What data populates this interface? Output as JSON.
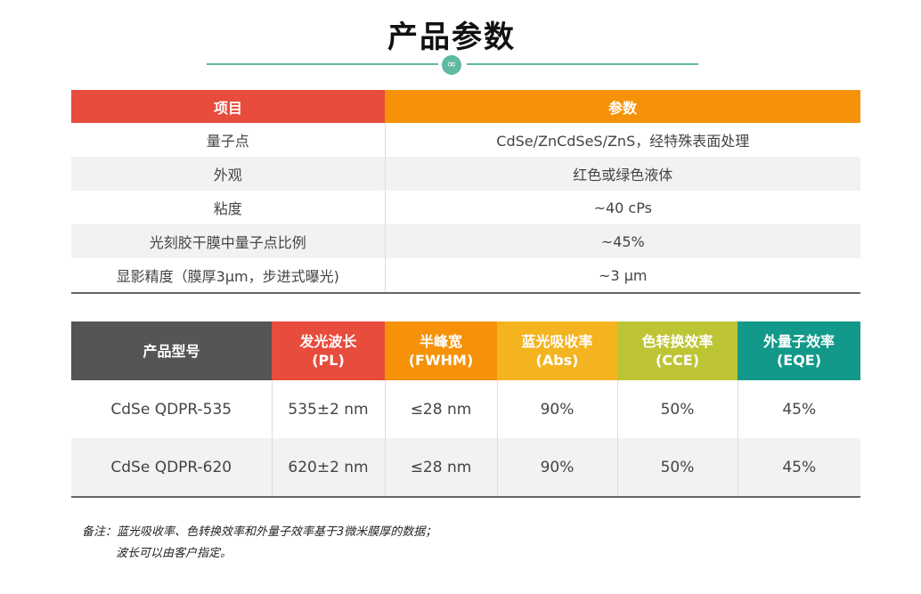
{
  "page": {
    "title": "产品参数",
    "divider_icon": "infinity-icon"
  },
  "params_table": {
    "headers": [
      "项目",
      "参数"
    ],
    "rows": [
      [
        "量子点",
        "CdSe/ZnCdSeS/ZnS，经特殊表面处理"
      ],
      [
        "外观",
        "红色或绿色液体"
      ],
      [
        "粘度",
        "~40 cPs"
      ],
      [
        "光刻胶干膜中量子点比例",
        "~45%"
      ],
      [
        "显影精度（膜厚3μm，步进式曝光)",
        "~3 μm"
      ]
    ]
  },
  "models_table": {
    "headers": [
      {
        "line1": "产品型号",
        "line2": ""
      },
      {
        "line1": "发光波长",
        "line2": "(PL)"
      },
      {
        "line1": "半峰宽",
        "line2": "(FWHM)"
      },
      {
        "line1": "蓝光吸收率",
        "line2": "(Abs)"
      },
      {
        "line1": "色转换效率",
        "line2": "(CCE)"
      },
      {
        "line1": "外量子效率",
        "line2": "(EQE)"
      }
    ],
    "rows": [
      [
        "CdSe QDPR-535",
        "535±2 nm",
        "≤28 nm",
        "90%",
        "50%",
        "45%"
      ],
      [
        "CdSe QDPR-620",
        "620±2 nm",
        "≤28 nm",
        "90%",
        "50%",
        "45%"
      ]
    ]
  },
  "notes": {
    "line1": "备注：蓝光吸收率、色转换效率和外量子效率基于3微米膜厚的数据；",
    "line2": "波长可以由客户指定。"
  },
  "colors": {
    "red": "#e74c3c",
    "orange": "#f5920a",
    "yellow": "#f4b41f",
    "lime": "#bdc535",
    "teal": "#12998a",
    "gray": "#555555",
    "accent_line": "#5fb9a3"
  }
}
